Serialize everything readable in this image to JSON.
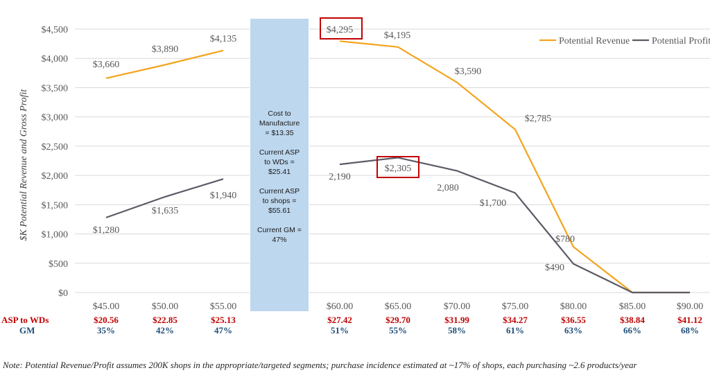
{
  "chart_data": {
    "type": "line",
    "ylabel": "$K Potential Revenue  and Gross Profit",
    "ylim": [
      0,
      4500
    ],
    "y_ticks": [
      "$4,500",
      "$4,000",
      "$3,500",
      "$3,000",
      "$2,500",
      "$2,000",
      "$1,500",
      "$1,000",
      "$500",
      "$0"
    ],
    "grid": true,
    "legend_position": "top-right",
    "x": [
      "$45.00",
      "$50.00",
      "$55.00",
      "$60.00",
      "$65.00",
      "$70.00",
      "$75.00",
      "$80.00",
      "$85.00",
      "$90.00"
    ],
    "series": [
      {
        "name": "Potential Revenue",
        "color": "#f4a31c",
        "values": [
          3660,
          3890,
          4135,
          4295,
          4195,
          3590,
          2785,
          780,
          0,
          0
        ],
        "labels": [
          "$3,660",
          "$3,890",
          "$4,135",
          "$4,295",
          "$4,195",
          "$3,590",
          "$2,785",
          "$780",
          "",
          ""
        ]
      },
      {
        "name": "Potential Profit",
        "color": "#5a5a66",
        "values": [
          1280,
          1635,
          1940,
          2190,
          2305,
          2080,
          1700,
          490,
          0,
          0
        ],
        "labels": [
          "$1,280",
          "$1,635",
          "$1,940",
          "2,190",
          "$2,305",
          "2,080",
          "$1,700",
          "$490",
          "",
          ""
        ]
      }
    ],
    "highlighted_labels": [
      "$4,295",
      "$2,305"
    ],
    "asp_row": {
      "label": "ASP to WDs",
      "values": [
        "$20.56",
        "$22.85",
        "$25.13",
        "$27.42",
        "$29.70",
        "$31.99",
        "$34.27",
        "$36.55",
        "$38.84",
        "$41.12"
      ]
    },
    "gm_row": {
      "label": "GM",
      "values": [
        "35%",
        "42%",
        "47%",
        "51%",
        "55%",
        "58%",
        "61%",
        "63%",
        "66%",
        "68%"
      ]
    }
  },
  "callout": {
    "lines": [
      "Cost to\nManufacture\n= $13.35",
      "Current ASP\nto WDs =\n$25.41",
      "Current ASP\nto shops =\n$55.61",
      "Current GM =\n47%"
    ]
  },
  "note": "Note: Potential Revenue/Profit assumes 200K shops in the appropriate/targeted segments; purchase incidence estimated at ~17% of shops, each purchasing ~2.6 products/year",
  "colors": {
    "revenue": "#f4a31c",
    "profit": "#5a5a66",
    "highlight_box": "#c00000",
    "callout_bg": "#bdd7ee",
    "grid": "#d9d9d9"
  }
}
